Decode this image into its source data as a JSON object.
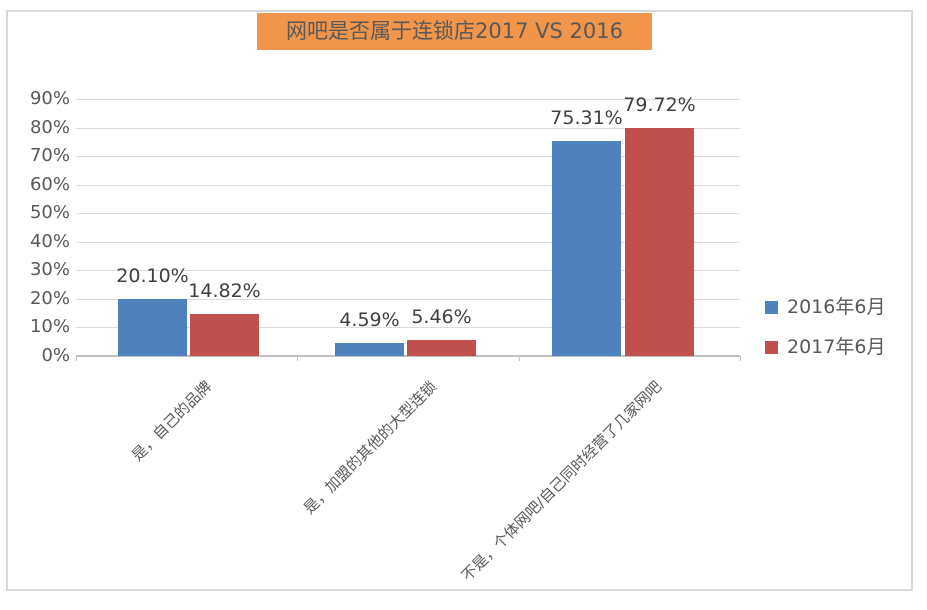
{
  "title": {
    "text": "网吧是否属于连锁店2017 VS 2016",
    "bg_color": "#F0954A",
    "text_color": "#595959"
  },
  "chart_data": {
    "type": "bar",
    "title": "网吧是否属于连锁店2017 VS 2016",
    "categories": [
      "是，自己的品牌",
      "是，加盟的其他的大型连锁",
      "不是，个体网吧/自己同时经营了几家网吧"
    ],
    "series": [
      {
        "name": "2016年6月",
        "color": "#4F81BD",
        "values": [
          20.1,
          4.59,
          75.31
        ],
        "data_labels": [
          "20.10%",
          "4.59%",
          "75.31%"
        ]
      },
      {
        "name": "2017年6月",
        "color": "#C0504D",
        "values": [
          14.82,
          5.46,
          79.72
        ],
        "data_labels": [
          "14.82%",
          "5.46%",
          "79.72%"
        ]
      }
    ],
    "y_axis": {
      "min": 0,
      "max": 90,
      "tick_step": 10,
      "ticks": [
        "0%",
        "10%",
        "20%",
        "30%",
        "40%",
        "50%",
        "60%",
        "70%",
        "80%",
        "90%"
      ]
    },
    "grid": "horizontal",
    "legend_position": "right",
    "xlabel": "",
    "ylabel": ""
  },
  "colors": {
    "series_2016": "#4F81BD",
    "series_2017": "#C0504D",
    "gridline": "#DCDCDC",
    "axis_line": "#BFBFBF",
    "border": "#D9D9D9",
    "axis_text": "#595959",
    "data_label_text": "#404040"
  }
}
